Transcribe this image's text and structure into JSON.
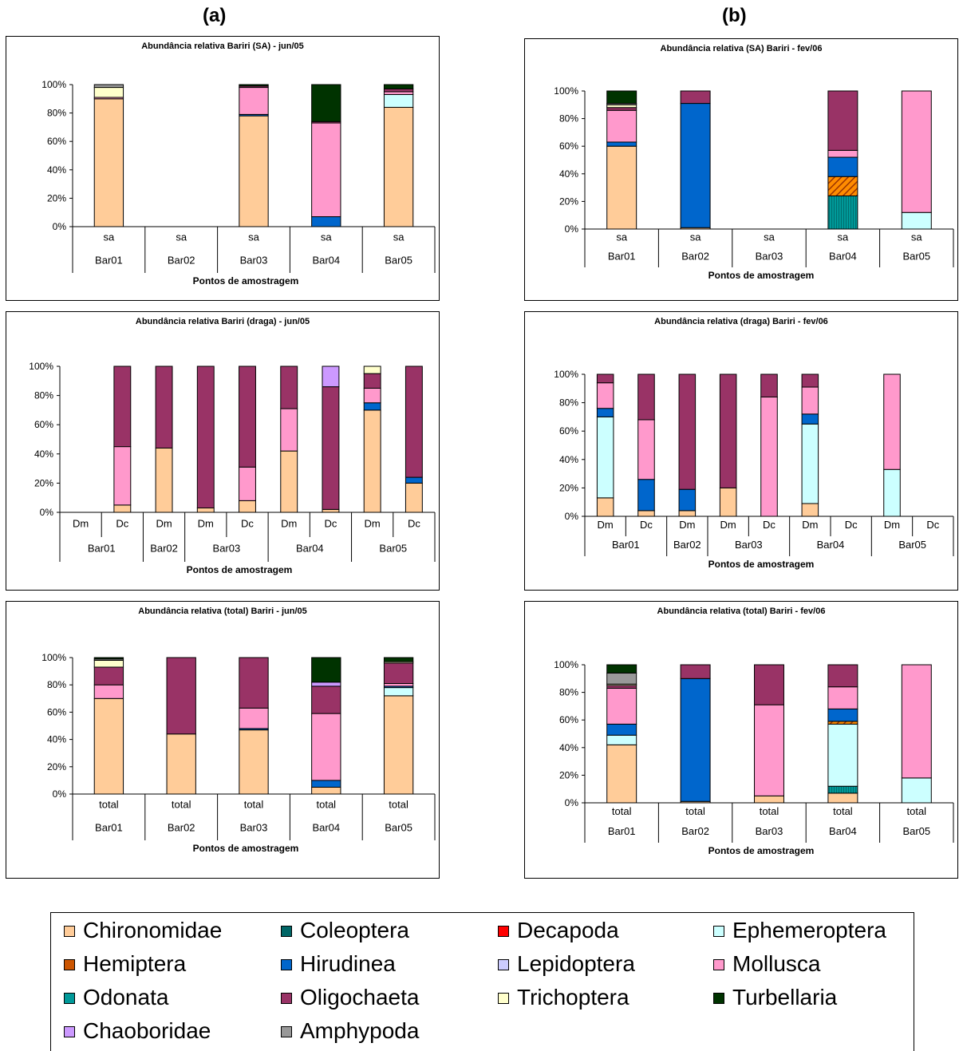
{
  "panel_labels": {
    "a": "(a)",
    "b": "(b)"
  },
  "taxa": [
    "Chironomidae",
    "Coleoptera",
    "Decapoda",
    "Ephemeroptera",
    "Hemiptera",
    "Hirudinea",
    "Lepidoptera",
    "Mollusca",
    "Odonata",
    "Oligochaeta",
    "Trichoptera",
    "Turbellaria",
    "Chaoboridae",
    "Amphypoda"
  ],
  "colors": {
    "Chironomidae": "#FFCC99",
    "Coleoptera": "#006666",
    "Decapoda": "#FF0000",
    "Ephemeroptera": "#CCFFFF",
    "Hemiptera": "#CC5500",
    "Hirudinea": "#0066CC",
    "Lepidoptera": "#CCCCFF",
    "Mollusca": "#FF99CC",
    "Odonata": "#009999",
    "Oligochaeta": "#993366",
    "Trichoptera": "#FFFFCC",
    "Turbellaria": "#003300",
    "Chaoboridae": "#CC99FF",
    "Amphypoda": "#999999"
  },
  "legend": {
    "items": [
      {
        "label": "Chironomidae"
      },
      {
        "label": "Coleoptera"
      },
      {
        "label": "Decapoda"
      },
      {
        "label": "Ephemeroptera"
      },
      {
        "label": "Hemiptera"
      },
      {
        "label": "Hirudinea"
      },
      {
        "label": "Lepidoptera"
      },
      {
        "label": "Mollusca"
      },
      {
        "label": "Odonata"
      },
      {
        "label": "Oligochaeta"
      },
      {
        "label": "Trichoptera"
      },
      {
        "label": "Turbellaria"
      },
      {
        "label": "Chaoboridae"
      },
      {
        "label": "Amphypoda"
      }
    ]
  },
  "chart_data": [
    {
      "type": "bar",
      "stacked": true,
      "percent": true,
      "title": "Abundância relativa Bariri (SA) - jun/05",
      "xlabel": "Pontos de amostragem",
      "y_ticks": [
        "0%",
        "20%",
        "40%",
        "60%",
        "80%",
        "100%"
      ],
      "categories": [
        {
          "sub": "sa",
          "group": "Bar01",
          "values": {
            "Chironomidae": 90,
            "Hirudinea": 0,
            "Oligochaeta": 0,
            "Mollusca": 1,
            "Trichoptera": 7,
            "Turbellaria": 0,
            "Amphypoda": 2
          }
        },
        {
          "sub": "sa",
          "group": "Bar02",
          "values": {}
        },
        {
          "sub": "sa",
          "group": "Bar03",
          "values": {
            "Chironomidae": 78,
            "Hirudinea": 1,
            "Mollusca": 19,
            "Oligochaeta": 1,
            "Turbellaria": 1
          }
        },
        {
          "sub": "sa",
          "group": "Bar04",
          "values": {
            "Hirudinea": 7,
            "Mollusca": 66,
            "Oligochaeta": 1,
            "Turbellaria": 26
          }
        },
        {
          "sub": "sa",
          "group": "Bar05",
          "values": {
            "Chironomidae": 84,
            "Ephemeroptera": 9,
            "Mollusca": 2,
            "Oligochaeta": 2,
            "Turbellaria": 3
          }
        }
      ]
    },
    {
      "type": "bar",
      "stacked": true,
      "percent": true,
      "title": "Abundância relativa (SA) Bariri - fev/06",
      "xlabel": "Pontos de amostragem",
      "y_ticks": [
        "0%",
        "20%",
        "40%",
        "60%",
        "80%",
        "100%"
      ],
      "categories": [
        {
          "sub": "sa",
          "group": "Bar01",
          "values": {
            "Chironomidae": 60,
            "Hirudinea": 3,
            "Mollusca": 23,
            "Oligochaeta": 2,
            "Trichoptera": 2,
            "Amphypoda": 1,
            "Turbellaria": 9
          }
        },
        {
          "sub": "sa",
          "group": "Bar02",
          "values": {
            "Chironomidae": 1,
            "Hirudinea": 90,
            "Oligochaeta": 9
          }
        },
        {
          "sub": "sa",
          "group": "Bar03",
          "values": {}
        },
        {
          "sub": "sa",
          "group": "Bar04",
          "values": {
            "Odonata": 24,
            "Hemiptera": 14,
            "Hirudinea": 14,
            "Mollusca": 5,
            "Oligochaeta": 43
          }
        },
        {
          "sub": "sa",
          "group": "Bar05",
          "values": {
            "Ephemeroptera": 12,
            "Mollusca": 88
          }
        }
      ]
    },
    {
      "type": "bar",
      "stacked": true,
      "percent": true,
      "title": "Abundância relativa Bariri (draga) - jun/05",
      "xlabel": "Pontos de amostragem",
      "y_ticks": [
        "0%",
        "20%",
        "40%",
        "60%",
        "80%",
        "100%"
      ],
      "categories": [
        {
          "sub": "Dm",
          "group": "Bar01",
          "values": {}
        },
        {
          "sub": "Dc",
          "group": "Bar01",
          "values": {
            "Chironomidae": 5,
            "Mollusca": 40,
            "Oligochaeta": 55
          }
        },
        {
          "sub": "Dm",
          "group": "Bar02",
          "values": {
            "Chironomidae": 44,
            "Oligochaeta": 56
          }
        },
        {
          "sub": "Dm",
          "group": "Bar03",
          "values": {
            "Chironomidae": 3,
            "Oligochaeta": 97
          }
        },
        {
          "sub": "Dc",
          "group": "Bar03",
          "values": {
            "Chironomidae": 8,
            "Mollusca": 23,
            "Oligochaeta": 69
          }
        },
        {
          "sub": "Dm",
          "group": "Bar04",
          "values": {
            "Chironomidae": 42,
            "Mollusca": 29,
            "Oligochaeta": 29
          }
        },
        {
          "sub": "Dc",
          "group": "Bar04",
          "values": {
            "Chironomidae": 2,
            "Oligochaeta": 84,
            "Chaoboridae": 14
          }
        },
        {
          "sub": "Dm",
          "group": "Bar05",
          "values": {
            "Chironomidae": 70,
            "Hirudinea": 5,
            "Mollusca": 10,
            "Oligochaeta": 10,
            "Trichoptera": 5
          }
        },
        {
          "sub": "Dc",
          "group": "Bar05",
          "values": {
            "Chironomidae": 20,
            "Hirudinea": 4,
            "Oligochaeta": 76
          }
        }
      ]
    },
    {
      "type": "bar",
      "stacked": true,
      "percent": true,
      "title": "Abundância relativa (draga) Bariri - fev/06",
      "xlabel": "Pontos de amostragem",
      "y_ticks": [
        "0%",
        "20%",
        "40%",
        "60%",
        "80%",
        "100%"
      ],
      "categories": [
        {
          "sub": "Dm",
          "group": "Bar01",
          "values": {
            "Chironomidae": 13,
            "Ephemeroptera": 57,
            "Hirudinea": 6,
            "Mollusca": 18,
            "Oligochaeta": 6
          }
        },
        {
          "sub": "Dc",
          "group": "Bar01",
          "values": {
            "Chironomidae": 4,
            "Hirudinea": 22,
            "Mollusca": 42,
            "Oligochaeta": 32
          }
        },
        {
          "sub": "Dm",
          "group": "Bar02",
          "values": {
            "Chironomidae": 4,
            "Hirudinea": 15,
            "Oligochaeta": 81
          }
        },
        {
          "sub": "Dm",
          "group": "Bar03",
          "values": {
            "Chironomidae": 20,
            "Oligochaeta": 80
          }
        },
        {
          "sub": "Dc",
          "group": "Bar03",
          "values": {
            "Mollusca": 84,
            "Oligochaeta": 16
          }
        },
        {
          "sub": "Dm",
          "group": "Bar04",
          "values": {
            "Chironomidae": 9,
            "Ephemeroptera": 56,
            "Hirudinea": 7,
            "Mollusca": 19,
            "Oligochaeta": 9
          }
        },
        {
          "sub": "Dc",
          "group": "Bar04",
          "values": {}
        },
        {
          "sub": "Dm",
          "group": "Bar05",
          "values": {
            "Ephemeroptera": 33,
            "Mollusca": 67
          }
        },
        {
          "sub": "Dc",
          "group": "Bar05",
          "values": {}
        }
      ]
    },
    {
      "type": "bar",
      "stacked": true,
      "percent": true,
      "title": "Abundância relativa (total) Bariri - jun/05",
      "xlabel": "Pontos de amostragem",
      "y_ticks": [
        "0%",
        "20%",
        "40%",
        "60%",
        "80%",
        "100%"
      ],
      "categories": [
        {
          "sub": "total",
          "group": "Bar01",
          "values": {
            "Chironomidae": 70,
            "Mollusca": 10,
            "Oligochaeta": 13,
            "Trichoptera": 5,
            "Turbellaria": 1,
            "Amphypoda": 1
          }
        },
        {
          "sub": "total",
          "group": "Bar02",
          "values": {
            "Chironomidae": 44,
            "Oligochaeta": 56
          }
        },
        {
          "sub": "total",
          "group": "Bar03",
          "values": {
            "Chironomidae": 47,
            "Hirudinea": 1,
            "Mollusca": 15,
            "Oligochaeta": 37
          }
        },
        {
          "sub": "total",
          "group": "Bar04",
          "values": {
            "Chironomidae": 5,
            "Hirudinea": 5,
            "Mollusca": 49,
            "Oligochaeta": 20,
            "Turbellaria": 18,
            "Chaoboridae": 3
          }
        },
        {
          "sub": "total",
          "group": "Bar05",
          "values": {
            "Chironomidae": 72,
            "Ephemeroptera": 6,
            "Hirudinea": 1,
            "Mollusca": 2,
            "Oligochaeta": 15,
            "Trichoptera": 1,
            "Turbellaria": 3
          }
        }
      ]
    },
    {
      "type": "bar",
      "stacked": true,
      "percent": true,
      "title": "Abundância relativa (total) Bariri - fev/06",
      "xlabel": "Pontos de amostragem",
      "y_ticks": [
        "0%",
        "20%",
        "40%",
        "60%",
        "80%",
        "100%"
      ],
      "categories": [
        {
          "sub": "total",
          "group": "Bar01",
          "values": {
            "Chironomidae": 42,
            "Ephemeroptera": 7,
            "Hirudinea": 8,
            "Mollusca": 26,
            "Oligochaeta": 2,
            "Trichoptera": 1,
            "Amphypoda": 8,
            "Turbellaria": 6
          }
        },
        {
          "sub": "total",
          "group": "Bar02",
          "values": {
            "Chironomidae": 1,
            "Hirudinea": 89,
            "Oligochaeta": 10
          }
        },
        {
          "sub": "total",
          "group": "Bar03",
          "values": {
            "Chironomidae": 5,
            "Mollusca": 66,
            "Oligochaeta": 29
          }
        },
        {
          "sub": "total",
          "group": "Bar04",
          "values": {
            "Chironomidae": 7,
            "Odonata": 5,
            "Ephemeroptera": 45,
            "Hemiptera": 2,
            "Hirudinea": 9,
            "Mollusca": 16,
            "Oligochaeta": 16
          }
        },
        {
          "sub": "total",
          "group": "Bar05",
          "values": {
            "Ephemeroptera": 18,
            "Mollusca": 82
          }
        }
      ]
    }
  ]
}
